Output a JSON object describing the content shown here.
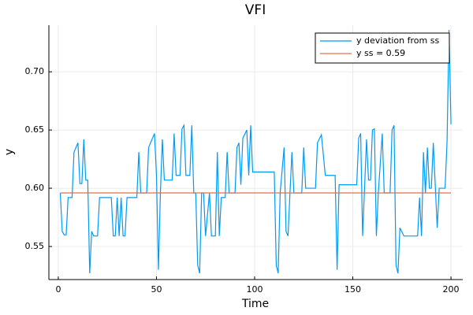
{
  "chart_data": {
    "type": "line",
    "title": "VFI",
    "x_label": "Time",
    "y_label": "y",
    "xlim": [
      -4.8,
      206
    ],
    "ylim": [
      0.5216,
      0.74
    ],
    "xticks": [
      0,
      50,
      100,
      150,
      200
    ],
    "yticks": [
      0.55,
      {
        "value": 0.6,
        "label": "0.60"
      },
      0.65,
      {
        "value": 0.7,
        "label": "0.70"
      }
    ],
    "grid": true,
    "legend": "top-right",
    "series": [
      {
        "name": "y deviation from ss",
        "color": "#009af9",
        "x": [
          1,
          2,
          3,
          4,
          5,
          7,
          8,
          10,
          11,
          12,
          13,
          14,
          15,
          16,
          17,
          18,
          20,
          21,
          27,
          28,
          29,
          30,
          31,
          32,
          33,
          34,
          35,
          40,
          41,
          42,
          45,
          46,
          49,
          50,
          51,
          52,
          53,
          54,
          58,
          59,
          60,
          62,
          63,
          64,
          65,
          67,
          68,
          69,
          70,
          71,
          72,
          73,
          74,
          75,
          77,
          78,
          80,
          81,
          82,
          83,
          85,
          86,
          87,
          90,
          91,
          92,
          93,
          94,
          96,
          97,
          98,
          99,
          110,
          111,
          112,
          113,
          115,
          116,
          117,
          118,
          119,
          120,
          124,
          125,
          126,
          131,
          132,
          134,
          136,
          141,
          142,
          143,
          152,
          153,
          154,
          155,
          157,
          158,
          159,
          160,
          161,
          162,
          163,
          165,
          166,
          169,
          170,
          171,
          172,
          173,
          174,
          176,
          183,
          184,
          185,
          186,
          187,
          188,
          189,
          190,
          191,
          193,
          194,
          197,
          198,
          199,
          200
        ],
        "values": [
          0.596,
          0.563,
          0.56,
          0.56,
          0.592,
          0.592,
          0.631,
          0.639,
          0.604,
          0.604,
          0.642,
          0.607,
          0.607,
          0.527,
          0.563,
          0.559,
          0.559,
          0.592,
          0.592,
          0.559,
          0.559,
          0.592,
          0.559,
          0.592,
          0.559,
          0.559,
          0.592,
          0.592,
          0.631,
          0.596,
          0.596,
          0.635,
          0.647,
          0.611,
          0.53,
          0.596,
          0.642,
          0.607,
          0.607,
          0.647,
          0.611,
          0.611,
          0.651,
          0.654,
          0.611,
          0.611,
          0.654,
          0.596,
          0.596,
          0.534,
          0.527,
          0.596,
          0.596,
          0.559,
          0.596,
          0.559,
          0.559,
          0.631,
          0.559,
          0.592,
          0.592,
          0.631,
          0.596,
          0.596,
          0.635,
          0.639,
          0.603,
          0.643,
          0.65,
          0.611,
          0.654,
          0.614,
          0.614,
          0.534,
          0.527,
          0.596,
          0.635,
          0.563,
          0.559,
          0.596,
          0.631,
          0.596,
          0.596,
          0.635,
          0.6,
          0.6,
          0.639,
          0.646,
          0.611,
          0.611,
          0.53,
          0.603,
          0.603,
          0.643,
          0.647,
          0.559,
          0.642,
          0.607,
          0.607,
          0.65,
          0.651,
          0.559,
          0.596,
          0.647,
          0.596,
          0.596,
          0.65,
          0.654,
          0.534,
          0.527,
          0.566,
          0.559,
          0.559,
          0.592,
          0.559,
          0.631,
          0.596,
          0.635,
          0.6,
          0.6,
          0.639,
          0.566,
          0.6,
          0.6,
          0.64,
          0.736,
          0.655
        ]
      },
      {
        "name": "y ss = 0.59",
        "color": "#e26f46",
        "x": [
          1,
          200
        ],
        "values": [
          0.596,
          0.596
        ]
      }
    ]
  }
}
